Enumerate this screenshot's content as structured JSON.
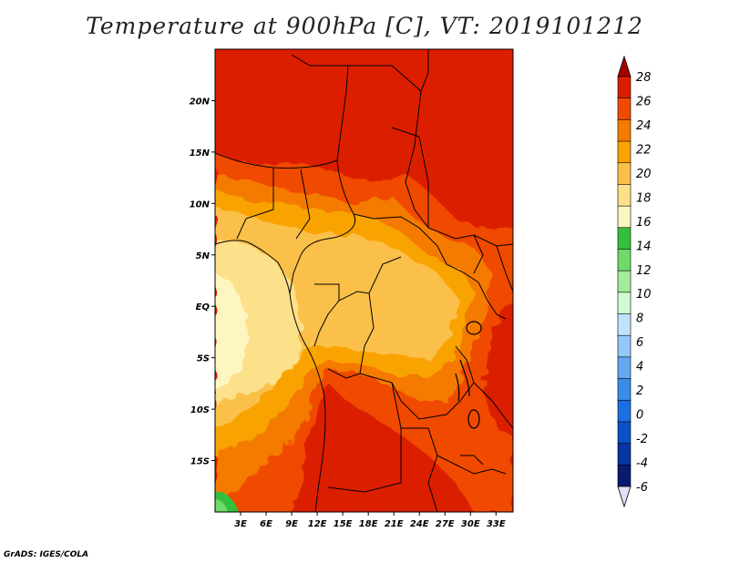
{
  "title": "Temperature at 900hPa [C], VT: 2019101212",
  "credit": "GrADS: IGES/COLA",
  "map": {
    "lat_labels": [
      "20N",
      "15N",
      "10N",
      "5N",
      "EQ",
      "5S",
      "10S",
      "15S"
    ],
    "lat_values": [
      20,
      15,
      10,
      5,
      0,
      -5,
      -10,
      -15
    ],
    "lon_labels": [
      "3E",
      "6E",
      "9E",
      "12E",
      "15E",
      "18E",
      "21E",
      "24E",
      "27E",
      "30E",
      "33E"
    ],
    "lon_values": [
      3,
      6,
      9,
      12,
      15,
      18,
      21,
      24,
      27,
      30,
      33
    ],
    "lon_range": [
      0,
      35
    ],
    "lat_range": [
      -20,
      25
    ]
  },
  "colorbar": {
    "labels": [
      "28",
      "26",
      "24",
      "22",
      "20",
      "18",
      "16",
      "14",
      "12",
      "10",
      "8",
      "6",
      "4",
      "2",
      "0",
      "-2",
      "-4",
      "-6"
    ],
    "colors": [
      "#a50000",
      "#dc1e00",
      "#f04a00",
      "#f57a00",
      "#f9a300",
      "#fbc04a",
      "#fde08a",
      "#fef6c0",
      "#34c03c",
      "#6fda6a",
      "#a4ec9b",
      "#d1fad0",
      "#bfe3fb",
      "#95c8f7",
      "#64a9f0",
      "#3a8ce8",
      "#1c6fe0",
      "#0a50c8",
      "#0836a0",
      "#0a1a70",
      "#e0e2f8"
    ]
  },
  "colors": {
    "warm_28": "#dc1e00",
    "warm_26": "#f04a00",
    "warm_24": "#f57a00",
    "warm_22": "#f9a300",
    "warm_20": "#fbc04a",
    "warm_18": "#fde08a",
    "pale_16": "#fef6c0",
    "green_14": "#34c03c"
  }
}
